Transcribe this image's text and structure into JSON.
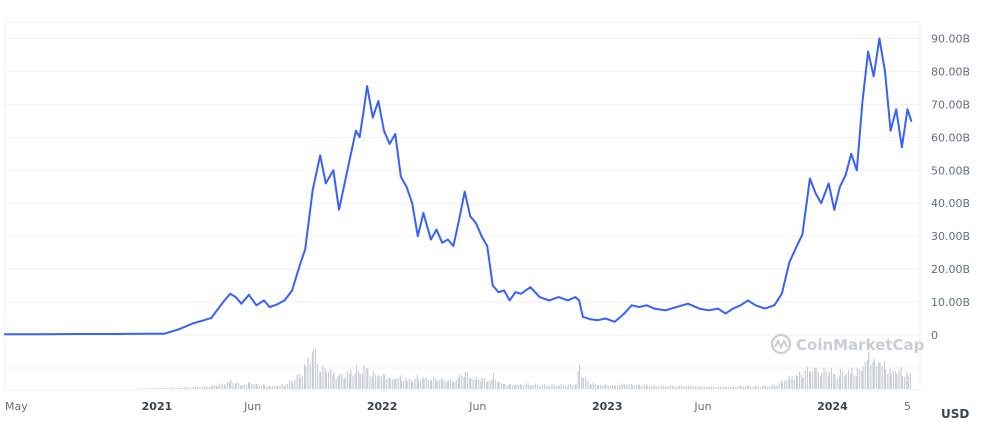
{
  "chart_data": {
    "type": "line",
    "unit": "USD",
    "series_color": "#3861fb",
    "volume_color": "#c7ccd6",
    "y_ticks": [
      {
        "value": 90,
        "label": "90.00B"
      },
      {
        "value": 80,
        "label": "80.00B"
      },
      {
        "value": 70,
        "label": "70.00B"
      },
      {
        "value": 60,
        "label": "60.00B"
      },
      {
        "value": 50,
        "label": "50.00B"
      },
      {
        "value": 40,
        "label": "40.00B"
      },
      {
        "value": 30,
        "label": "30.00B"
      },
      {
        "value": 20,
        "label": "20.00B"
      },
      {
        "value": 10,
        "label": "10.00B"
      },
      {
        "value": 0,
        "label": "0"
      }
    ],
    "ylim": [
      0,
      95
    ],
    "x_ticks": [
      {
        "label": "May",
        "t": 0,
        "bold": false
      },
      {
        "label": "2021",
        "t": 8.1,
        "bold": true
      },
      {
        "label": "Jun",
        "t": 13.2,
        "bold": false
      },
      {
        "label": "2022",
        "t": 20.1,
        "bold": true
      },
      {
        "label": "Jun",
        "t": 25.2,
        "bold": false
      },
      {
        "label": "2023",
        "t": 32.1,
        "bold": true
      },
      {
        "label": "Jun",
        "t": 37.2,
        "bold": false
      },
      {
        "label": "2024",
        "t": 44.1,
        "bold": true
      },
      {
        "label": "5",
        "t": 48.1,
        "bold": false
      }
    ],
    "xlim": [
      0,
      48.5
    ],
    "x": [
      0,
      2,
      4,
      6,
      7.5,
      8.5,
      9.3,
      10,
      10.5,
      11,
      11.3,
      11.7,
      12,
      12.3,
      12.6,
      13,
      13.4,
      13.8,
      14.1,
      14.5,
      14.9,
      15.3,
      15.7,
      16,
      16.4,
      16.8,
      17.1,
      17.5,
      17.8,
      18.1,
      18.4,
      18.7,
      18.9,
      19.1,
      19.3,
      19.6,
      19.9,
      20.2,
      20.5,
      20.8,
      21.1,
      21.4,
      21.7,
      22,
      22.3,
      22.7,
      23,
      23.3,
      23.6,
      23.9,
      24.2,
      24.5,
      24.8,
      25.1,
      25.4,
      25.7,
      26,
      26.3,
      26.6,
      26.9,
      27.2,
      27.5,
      28,
      28.5,
      29,
      29.5,
      30,
      30.4,
      30.6,
      30.8,
      31.2,
      31.6,
      32,
      32.5,
      33,
      33.4,
      33.8,
      34.2,
      34.6,
      35.2,
      35.8,
      36.4,
      37,
      37.5,
      38,
      38.4,
      38.8,
      39.2,
      39.6,
      40,
      40.5,
      41,
      41.4,
      41.8,
      42.2,
      42.5,
      42.9,
      43.2,
      43.5,
      43.9,
      44.2,
      44.5,
      44.8,
      45.1,
      45.4,
      45.7,
      46,
      46.3,
      46.6,
      46.9,
      47.2,
      47.5,
      47.8,
      48.1,
      48.3
    ],
    "values": [
      0.2,
      0.2,
      0.3,
      0.3,
      0.4,
      0.4,
      1.8,
      3.5,
      4.3,
      5.2,
      7.5,
      10.5,
      12.5,
      11.5,
      9.5,
      12.2,
      9.0,
      10.5,
      8.5,
      9.3,
      10.5,
      13.5,
      21.0,
      26.0,
      44.0,
      54.5,
      46.0,
      50.0,
      38.0,
      46.0,
      54.0,
      62.0,
      60.0,
      67.5,
      75.5,
      66.0,
      71.0,
      62.0,
      58.0,
      61.0,
      48.0,
      45.0,
      40.0,
      30.0,
      37.0,
      29.0,
      32.0,
      28.0,
      29.0,
      27.0,
      35.0,
      43.5,
      36.0,
      34.0,
      30.0,
      27.0,
      15.0,
      13.0,
      13.5,
      10.5,
      13.0,
      12.5,
      14.5,
      11.5,
      10.5,
      11.5,
      10.5,
      11.5,
      10.5,
      5.5,
      4.8,
      4.5,
      5.0,
      4.0,
      6.5,
      9.0,
      8.5,
      9.0,
      8.0,
      7.5,
      8.5,
      9.5,
      8.0,
      7.5,
      8.0,
      6.5,
      8.0,
      9.0,
      10.5,
      9.0,
      8.0,
      9.0,
      12.5,
      22.0,
      27.0,
      30.5,
      47.5,
      43.0,
      40.0,
      46.0,
      38.0,
      45.0,
      48.5,
      55.0,
      50.0,
      71.0,
      86.0,
      78.5,
      90.0,
      80.0,
      62.0,
      68.5,
      57.0,
      68.5,
      65.0
    ],
    "volume": [
      0,
      0,
      0,
      0,
      0.02,
      0.02,
      0.04,
      0.05,
      0.06,
      0.08,
      0.1,
      0.16,
      0.2,
      0.15,
      0.12,
      0.18,
      0.12,
      0.1,
      0.09,
      0.1,
      0.12,
      0.2,
      0.35,
      0.6,
      1.0,
      0.45,
      0.5,
      0.4,
      0.3,
      0.35,
      0.45,
      0.5,
      0.4,
      0.55,
      0.5,
      0.4,
      0.45,
      0.38,
      0.3,
      0.35,
      0.3,
      0.28,
      0.25,
      0.3,
      0.28,
      0.24,
      0.25,
      0.22,
      0.22,
      0.2,
      0.3,
      0.4,
      0.3,
      0.25,
      0.28,
      0.22,
      0.35,
      0.2,
      0.15,
      0.12,
      0.14,
      0.12,
      0.12,
      0.1,
      0.1,
      0.1,
      0.1,
      0.12,
      0.55,
      0.3,
      0.15,
      0.12,
      0.12,
      0.1,
      0.15,
      0.12,
      0.1,
      0.1,
      0.08,
      0.08,
      0.08,
      0.08,
      0.07,
      0.07,
      0.07,
      0.06,
      0.06,
      0.08,
      0.08,
      0.07,
      0.07,
      0.1,
      0.2,
      0.3,
      0.35,
      0.4,
      0.5,
      0.45,
      0.4,
      0.5,
      0.35,
      0.4,
      0.45,
      0.5,
      0.45,
      0.7,
      0.95,
      0.75,
      0.9,
      0.6,
      0.5,
      0.55,
      0.45,
      0.4,
      0.35
    ]
  },
  "watermark": {
    "text": "CoinMarketCap"
  }
}
